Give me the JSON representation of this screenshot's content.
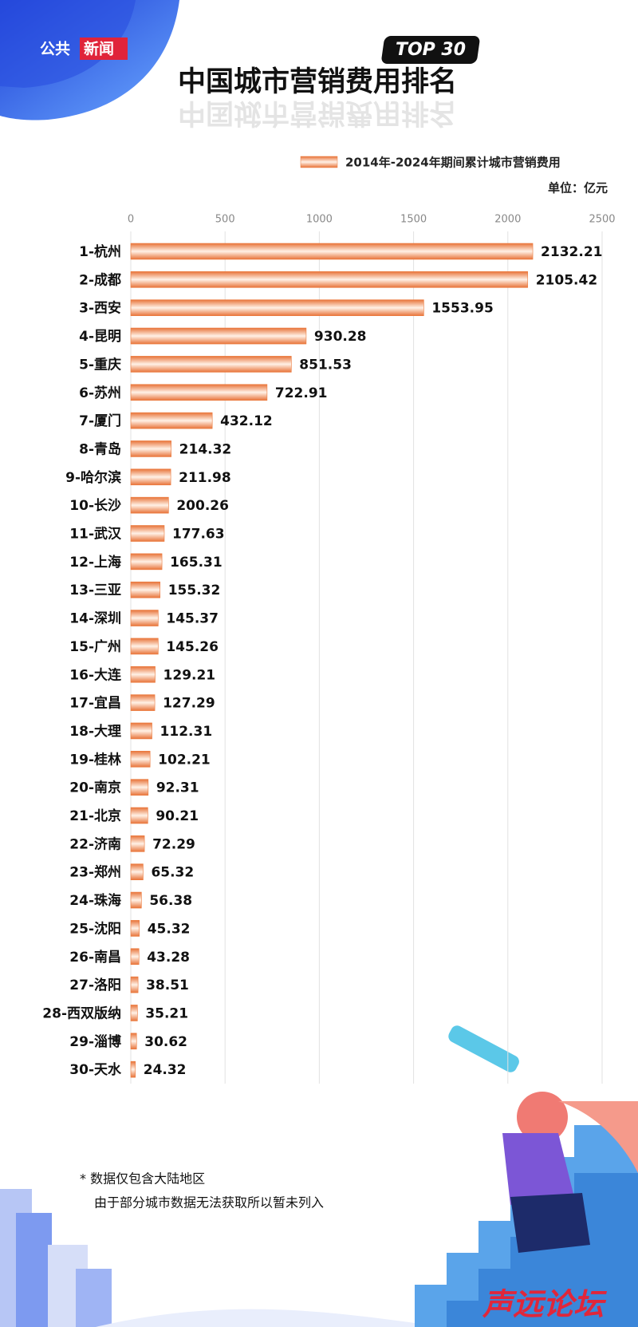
{
  "chart_data": {
    "type": "bar",
    "orientation": "horizontal",
    "title": "中国城市营销费用排名",
    "badge": "TOP 30",
    "logo": [
      "公共",
      "新闻"
    ],
    "unit": "单位：亿元",
    "categories": [
      "1-杭州",
      "2-成都",
      "3-西安",
      "4-昆明",
      "5-重庆",
      "6-苏州",
      "7-厦门",
      "8-青岛",
      "9-哈尔滨",
      "10-长沙",
      "11-武汉",
      "12-上海",
      "13-三亚",
      "14-深圳",
      "15-广州",
      "16-大连",
      "17-宜昌",
      "18-大理",
      "19-桂林",
      "20-南京",
      "21-北京",
      "22-济南",
      "23-郑州",
      "24-珠海",
      "25-沈阳",
      "26-南昌",
      "27-洛阳",
      "28-西双版纳",
      "29-淄博",
      "30-天水"
    ],
    "series": [
      {
        "name": "2014年-2024年期间累计城市营销费用",
        "color": "#ec7a3c",
        "values": [
          2132.21,
          2105.42,
          1553.95,
          930.28,
          851.53,
          722.91,
          432.12,
          214.32,
          211.98,
          200.26,
          177.63,
          165.31,
          155.32,
          145.37,
          145.26,
          129.21,
          127.29,
          112.31,
          102.21,
          92.31,
          90.21,
          72.29,
          65.32,
          56.38,
          45.32,
          43.28,
          38.51,
          35.21,
          30.62,
          24.32
        ]
      }
    ],
    "xlim": [
      0,
      2500
    ],
    "xticks": [
      0,
      500,
      1000,
      1500,
      2000,
      2500
    ],
    "grid": true,
    "legend": "top-right",
    "footnote": [
      "* 数据仅包含大陆地区",
      "由于部分城市数据无法获取所以暂未列入"
    ],
    "watermark": "声远论坛"
  }
}
